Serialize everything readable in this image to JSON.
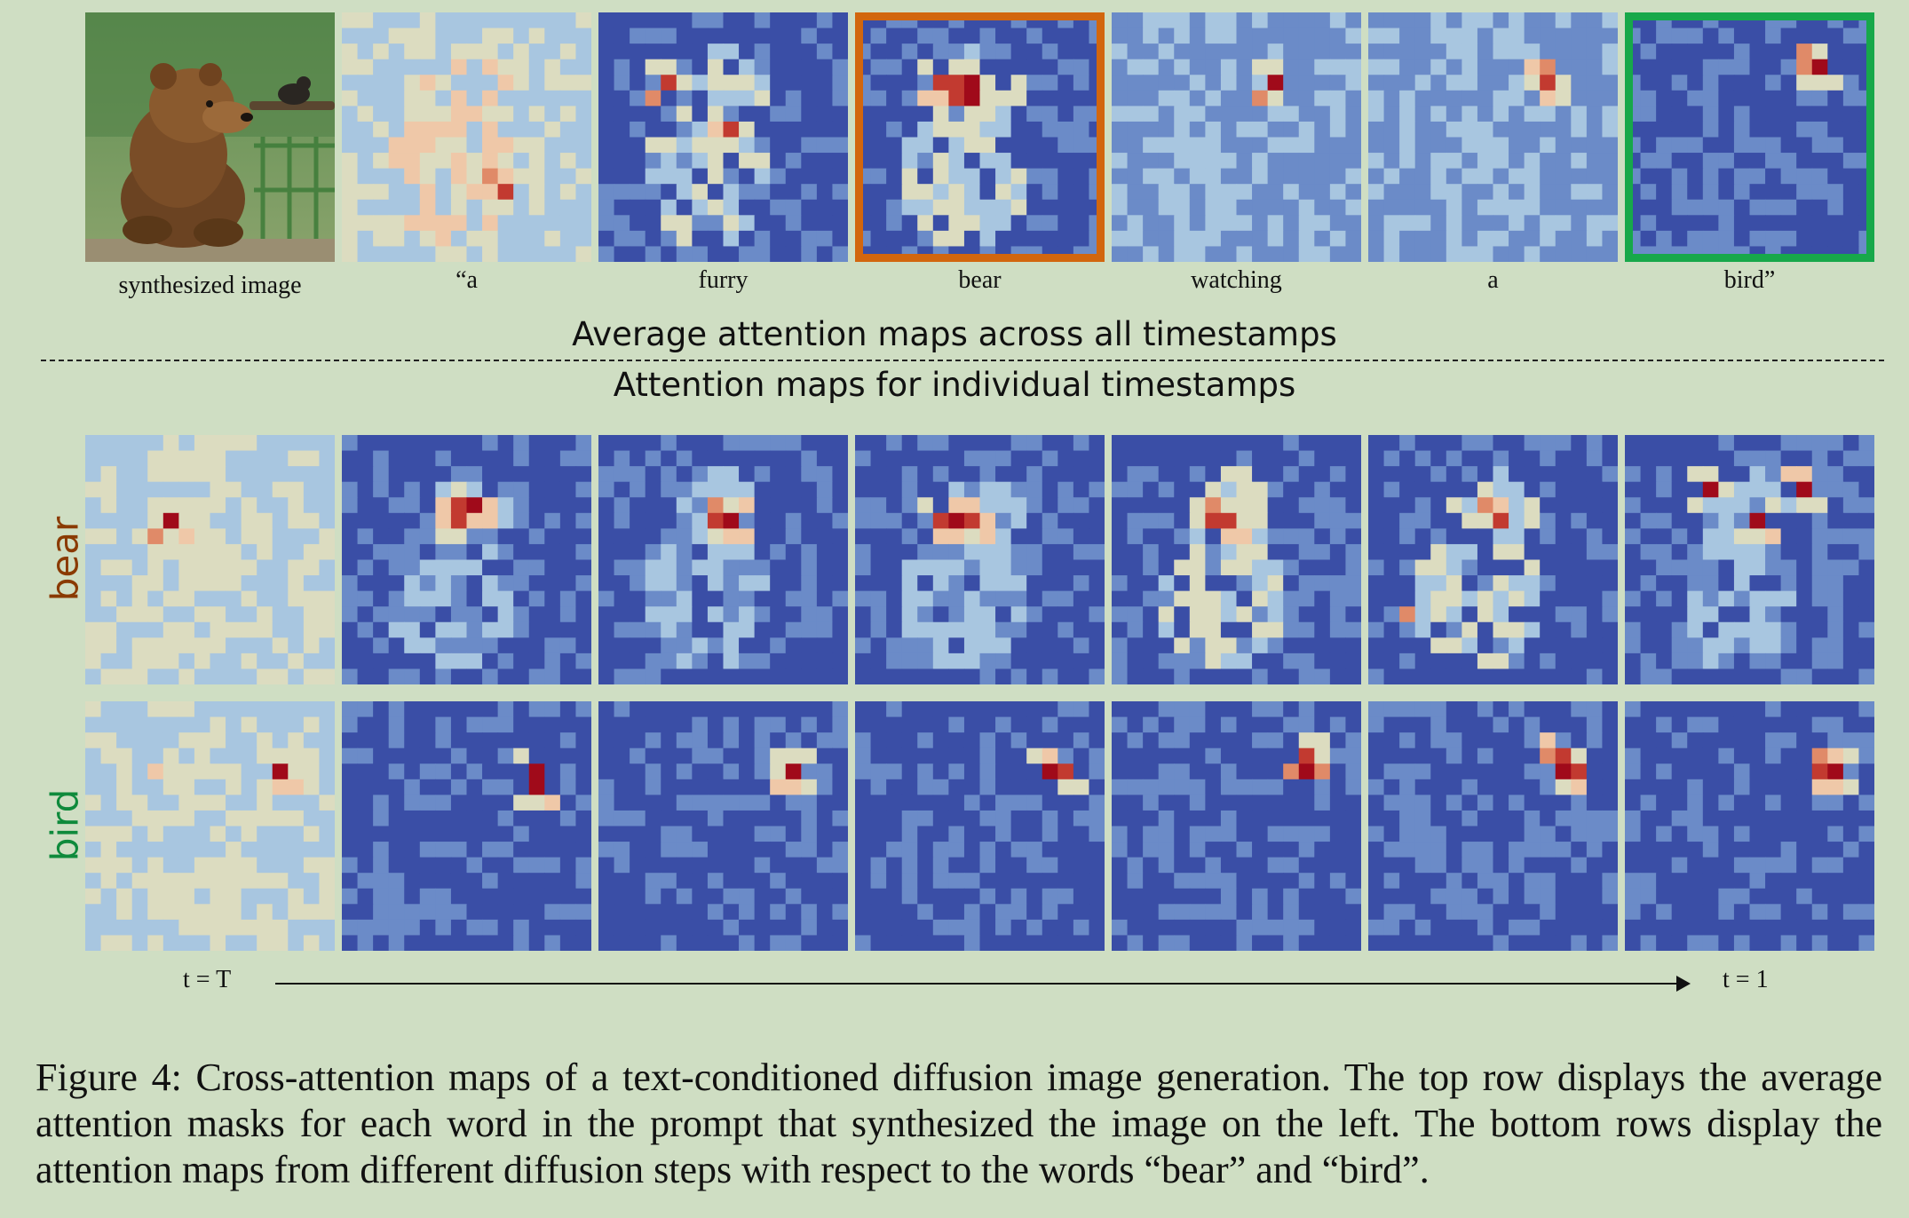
{
  "top_row": {
    "image_label": "synthesized image",
    "words": [
      "“a",
      "furry",
      "bear",
      "watching",
      "a",
      "bird”"
    ],
    "highlight_colors": {
      "bear": "#d2660e",
      "bird": "#17a84a"
    }
  },
  "banner_average": "Average attention maps across all timestamps",
  "banner_individual": "Attention maps for individual  timestamps",
  "row_labels": {
    "bear": "bear",
    "bird": "bird"
  },
  "row_label_colors": {
    "bear": "#8a3a00",
    "bird": "#0f8a3c"
  },
  "timeline": {
    "start": "t = T",
    "end": "t = 1"
  },
  "caption": "Figure 4: Cross-attention maps of a text-conditioned diffusion image generation. The top row displays the average attention masks for each word in the prompt that synthesized the image on the left. The bottom rows display the attention maps from different diffusion steps with respect to the words “bear” and “bird”.",
  "colormap": [
    "#3a4ea6",
    "#6b8bc8",
    "#a8c6e0",
    "#dcdcc0",
    "#efc8a8",
    "#e08a68",
    "#c23a30",
    "#a00a1a"
  ]
}
